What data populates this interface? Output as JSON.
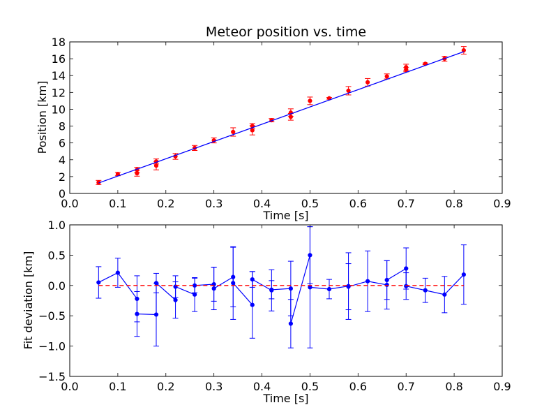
{
  "colors": {
    "data": "#ff0000",
    "fit": "#0000ff",
    "zero": "#ff0000",
    "frame": "#000000"
  },
  "chart_data": [
    {
      "type": "scatter",
      "title": "Meteor position vs. time",
      "xlabel": "Time [s]",
      "ylabel": "Position [km]",
      "xlim": [
        0.0,
        0.9
      ],
      "ylim": [
        0,
        18
      ],
      "xticks": [
        "0.0",
        "0.1",
        "0.2",
        "0.3",
        "0.4",
        "0.5",
        "0.6",
        "0.7",
        "0.8",
        "0.9"
      ],
      "yticks": [
        "0",
        "2",
        "4",
        "6",
        "8",
        "10",
        "12",
        "14",
        "16",
        "18"
      ],
      "grid": false,
      "series": [
        {
          "kind": "errorbar-points",
          "x": [
            0.06,
            0.1,
            0.14,
            0.14,
            0.18,
            0.18,
            0.22,
            0.26,
            0.3,
            0.34,
            0.38,
            0.38,
            0.42,
            0.46,
            0.46,
            0.5,
            0.54,
            0.58,
            0.62,
            0.66,
            0.7,
            0.7,
            0.74,
            0.78,
            0.82
          ],
          "y": [
            1.3,
            2.3,
            2.8,
            2.4,
            3.8,
            3.3,
            4.4,
            5.4,
            6.3,
            7.3,
            8.0,
            7.5,
            8.7,
            9.6,
            9.1,
            11.0,
            11.3,
            12.2,
            13.2,
            13.9,
            15.0,
            14.7,
            15.4,
            16.0,
            17.0
          ],
          "yerr": [
            0.25,
            0.2,
            0.3,
            0.35,
            0.3,
            0.5,
            0.35,
            0.3,
            0.3,
            0.5,
            0.3,
            0.55,
            0.2,
            0.45,
            0.4,
            0.45,
            0.1,
            0.5,
            0.45,
            0.3,
            0.35,
            0.25,
            0.1,
            0.3,
            0.45
          ]
        },
        {
          "kind": "line",
          "x": [
            0.06,
            0.82
          ],
          "y": [
            1.24,
            16.84
          ]
        }
      ]
    },
    {
      "type": "line",
      "title": "",
      "xlabel": "Time [s]",
      "ylabel": "Fit deviation [km]",
      "xlim": [
        0.0,
        0.9
      ],
      "ylim": [
        -1.5,
        1.0
      ],
      "xticks": [
        "0.0",
        "0.1",
        "0.2",
        "0.3",
        "0.4",
        "0.5",
        "0.6",
        "0.7",
        "0.8",
        "0.9"
      ],
      "yticks": [
        "−1.5",
        "−1.0",
        "−0.5",
        "0.0",
        "0.5",
        "1.0"
      ],
      "grid": false,
      "series": [
        {
          "kind": "errorbar-line",
          "x": [
            0.06,
            0.1,
            0.14,
            0.14,
            0.18,
            0.18,
            0.22,
            0.22,
            0.26,
            0.26,
            0.3,
            0.3,
            0.34,
            0.34,
            0.38,
            0.38,
            0.42,
            0.42,
            0.46,
            0.46,
            0.5,
            0.5,
            0.54,
            0.58,
            0.58,
            0.62,
            0.66,
            0.66,
            0.7,
            0.7,
            0.74,
            0.78,
            0.82
          ],
          "y": [
            0.05,
            0.21,
            -0.22,
            -0.47,
            -0.48,
            0.04,
            -0.24,
            -0.02,
            -0.15,
            0.0,
            0.02,
            -0.05,
            0.14,
            0.04,
            -0.32,
            0.1,
            -0.08,
            -0.07,
            -0.05,
            -0.63,
            0.5,
            -0.03,
            -0.06,
            -0.01,
            -0.02,
            0.07,
            0.01,
            0.09,
            0.28,
            -0.01,
            -0.08,
            -0.15,
            0.18
          ],
          "yerr": [
            0.26,
            0.24,
            0.38,
            0.37,
            0.52,
            0.16,
            0.3,
            0.18,
            0.28,
            0.12,
            0.28,
            0.35,
            0.49,
            0.6,
            0.55,
            0.13,
            0.34,
            0.15,
            0.45,
            0.4,
            0.47,
            1.0,
            0.16,
            0.55,
            0.38,
            0.5,
            0.4,
            0.32,
            0.34,
            0.22,
            0.2,
            0.3,
            0.49
          ]
        },
        {
          "kind": "dashed-line",
          "x": [
            0.06,
            0.82
          ],
          "y": [
            0.0,
            0.0
          ]
        }
      ]
    }
  ]
}
